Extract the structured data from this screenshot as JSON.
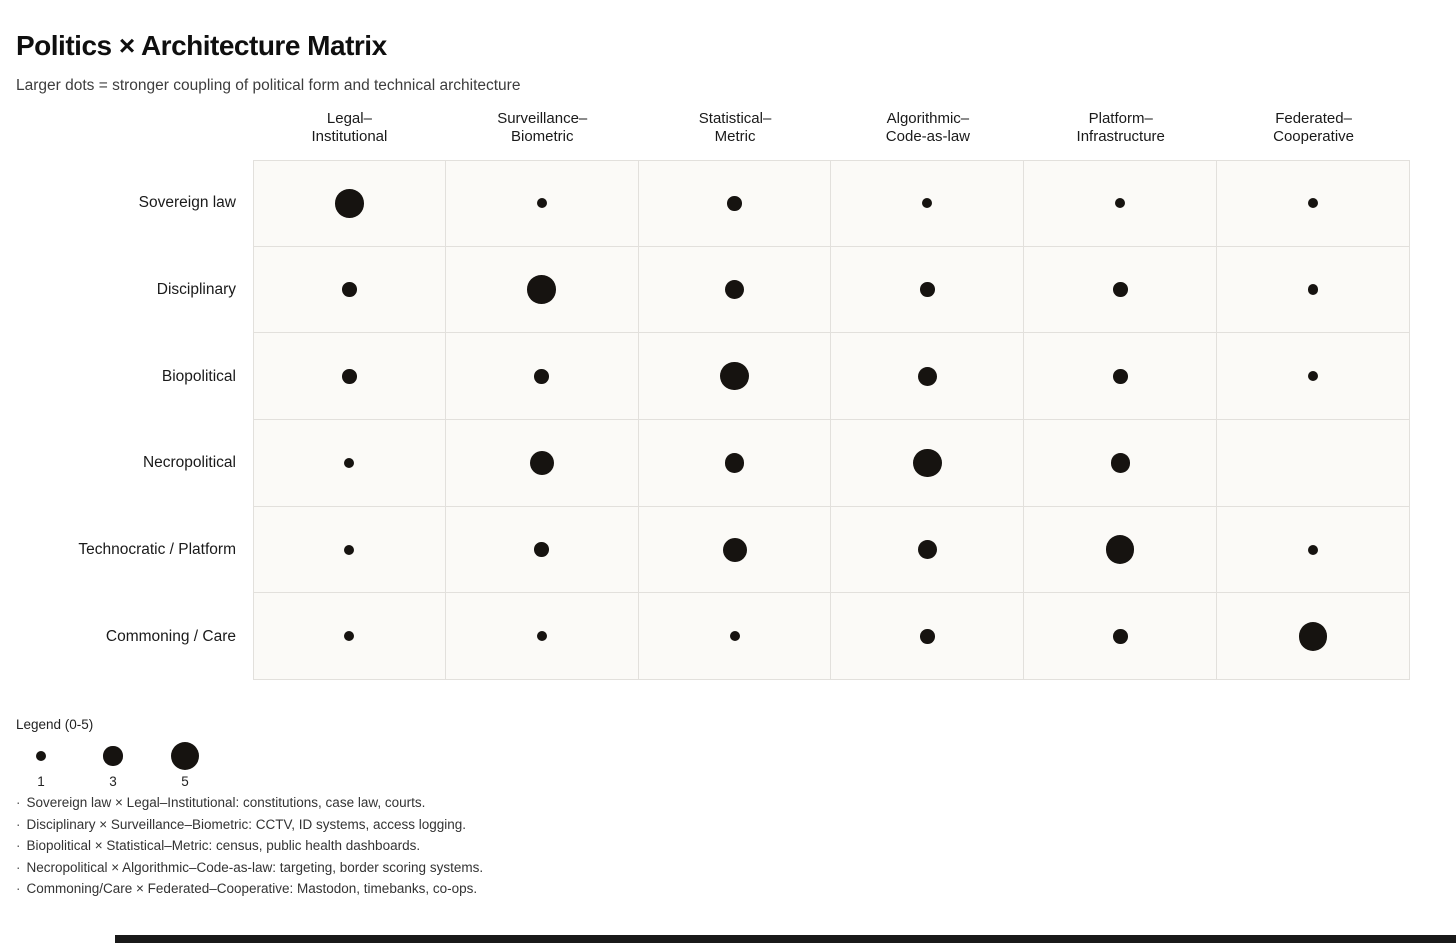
{
  "title": "Politics × Architecture Matrix",
  "subtitle": "Larger dots = stronger coupling of political form and technical architecture",
  "chart_data": {
    "type": "bubble-matrix",
    "value_range": [
      0,
      5
    ],
    "columns": [
      {
        "label": "Legal–Institutional",
        "lines": [
          "Legal–",
          "Institutional"
        ]
      },
      {
        "label": "Surveillance–Biometric",
        "lines": [
          "Surveillance–",
          "Biometric"
        ]
      },
      {
        "label": "Statistical–Metric",
        "lines": [
          "Statistical–",
          "Metric"
        ]
      },
      {
        "label": "Algorithmic–Code-as-law",
        "lines": [
          "Algorithmic–",
          "Code-as-law"
        ]
      },
      {
        "label": "Platform–Infrastructure",
        "lines": [
          "Platform–",
          "Infrastructure"
        ]
      },
      {
        "label": "Federated–Cooperative",
        "lines": [
          "Federated–",
          "Cooperative"
        ]
      }
    ],
    "rows": [
      {
        "label": "Sovereign law",
        "values": [
          5,
          1,
          2,
          1,
          1,
          1
        ]
      },
      {
        "label": "Disciplinary",
        "values": [
          2,
          5,
          3,
          2,
          2,
          1
        ]
      },
      {
        "label": "Biopolitical",
        "values": [
          2,
          2,
          5,
          3,
          2,
          1
        ]
      },
      {
        "label": "Necropolitical",
        "values": [
          1,
          4,
          3,
          5,
          3,
          0
        ]
      },
      {
        "label": "Technocratic / Platform",
        "values": [
          1,
          2,
          4,
          3,
          5,
          1
        ]
      },
      {
        "label": "Commoning / Care",
        "values": [
          1,
          1,
          1,
          2,
          2,
          5
        ]
      }
    ],
    "dot_color": "#161310"
  },
  "legend": {
    "title": "Legend (0-5)",
    "items": [
      {
        "value": 1
      },
      {
        "value": 3
      },
      {
        "value": 5
      }
    ]
  },
  "notes": {
    "bullet": "·",
    "lines": [
      "Sovereign law × Legal–Institutional: constitutions, case law, courts.",
      "Disciplinary × Surveillance–Biometric: CCTV, ID systems, access logging.",
      "Biopolitical × Statistical–Metric: census, public health dashboards.",
      "Necropolitical × Algorithmic–Code-as-law: targeting, border scoring systems.",
      "Commoning/Care × Federated–Cooperative: Mastodon, timebanks, co-ops."
    ]
  }
}
